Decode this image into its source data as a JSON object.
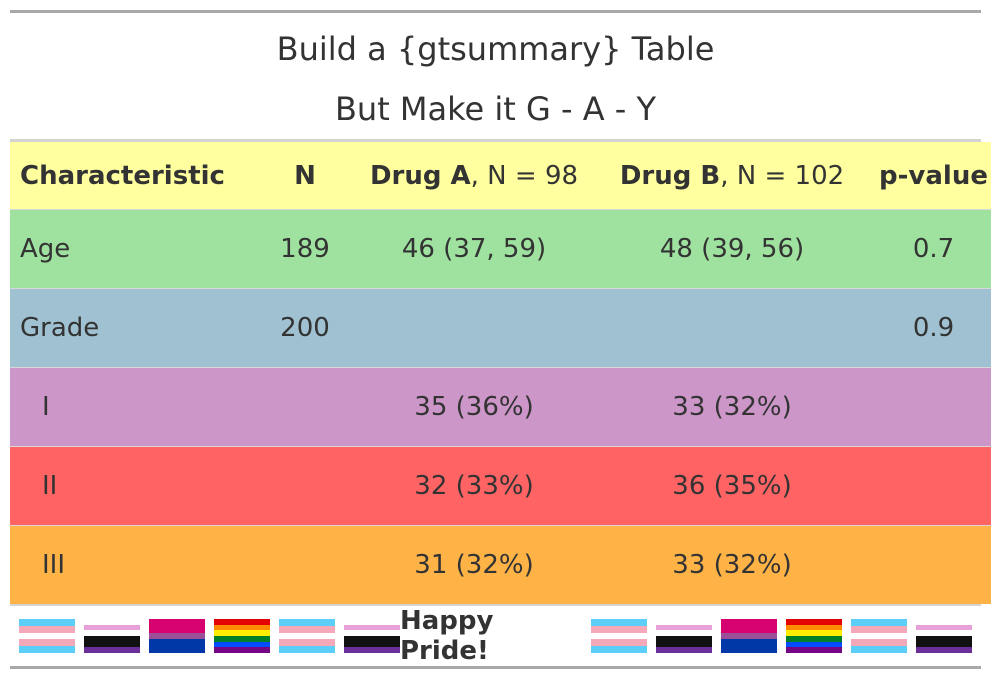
{
  "title": "Build a {gtsummary} Table",
  "subtitle": "But Make it G - A - Y",
  "header": {
    "characteristic": "Characteristic",
    "n": "N",
    "drug_a_name": "Drug A",
    "drug_a_n": ", N = 98",
    "drug_b_name": "Drug B",
    "drug_b_n": ", N = 102",
    "pvalue": "p-value",
    "bg": "#FFFF9F"
  },
  "rows": [
    {
      "label": "Age",
      "n": "189",
      "drug_a": "46 (37, 59)",
      "drug_b": "48 (39, 56)",
      "p": "0.7",
      "bg": "#9FE2A0"
    },
    {
      "label": "Grade",
      "n": "200",
      "drug_a": "",
      "drug_b": "",
      "p": "0.9",
      "bg": "#9FC1D1"
    },
    {
      "label": "I",
      "n": "",
      "drug_a": "35 (36%)",
      "drug_b": "33 (32%)",
      "p": "",
      "bg": "#CC96C8"
    },
    {
      "label": "II",
      "n": "",
      "drug_a": "32 (33%)",
      "drug_b": "36 (35%)",
      "p": "",
      "bg": "#FF6363"
    },
    {
      "label": "III",
      "n": "",
      "drug_a": "31 (32%)",
      "drug_b": "33 (32%)",
      "p": "",
      "bg": "#FFB347"
    }
  ],
  "footer": {
    "text": "Happy Pride!",
    "flags_left": [
      "transgender-flag",
      "nonbinary-flag",
      "bisexual-flag",
      "rainbow-flag",
      "transgender-flag",
      "nonbinary-flag"
    ],
    "flags_right": [
      "transgender-flag",
      "nonbinary-flag",
      "bisexual-flag",
      "rainbow-flag",
      "transgender-flag",
      "nonbinary-flag"
    ]
  }
}
